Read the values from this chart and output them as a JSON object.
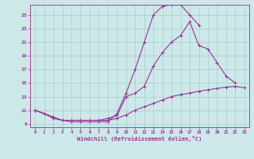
{
  "xlabel": "Windchill (Refroidissement éolien,°C)",
  "bg_color": "#cce8e8",
  "grid_color": "#aacccc",
  "line_color": "#993399",
  "xlim": [
    -0.5,
    23.5
  ],
  "ylim": [
    8.5,
    26.5
  ],
  "yticks": [
    9,
    11,
    13,
    15,
    17,
    19,
    21,
    23,
    25
  ],
  "xticks": [
    0,
    1,
    2,
    3,
    4,
    5,
    6,
    7,
    8,
    9,
    10,
    11,
    12,
    13,
    14,
    15,
    16,
    17,
    18,
    19,
    20,
    21,
    22,
    23
  ],
  "line1_x": [
    0,
    1,
    2,
    3,
    4,
    5,
    6,
    7,
    8,
    9,
    10,
    11,
    12,
    13,
    14,
    15,
    16,
    17,
    18
  ],
  "line1_y": [
    11.0,
    10.5,
    10.0,
    9.5,
    9.3,
    9.3,
    9.3,
    9.3,
    9.3,
    10.5,
    13.5,
    17.0,
    21.0,
    25.0,
    26.3,
    26.5,
    26.5,
    25.0,
    23.5
  ],
  "line2_x": [
    0,
    1,
    2,
    3,
    4,
    5,
    6,
    7,
    8,
    9,
    10,
    11,
    12,
    13,
    14,
    15,
    16,
    17,
    18,
    19,
    20,
    21,
    22
  ],
  "line2_y": [
    11.0,
    10.5,
    10.0,
    9.5,
    9.5,
    9.5,
    9.5,
    9.5,
    9.8,
    10.2,
    13.0,
    13.5,
    14.5,
    17.5,
    19.5,
    21.0,
    22.0,
    24.0,
    20.5,
    20.0,
    18.0,
    16.0,
    15.0
  ],
  "line3_x": [
    0,
    1,
    2,
    3,
    4,
    5,
    6,
    7,
    8,
    9,
    10,
    11,
    12,
    13,
    14,
    15,
    16,
    17,
    18,
    19,
    20,
    21,
    22,
    23
  ],
  "line3_y": [
    11.0,
    10.5,
    9.8,
    9.5,
    9.5,
    9.5,
    9.5,
    9.5,
    9.5,
    9.8,
    10.3,
    11.0,
    11.5,
    12.0,
    12.5,
    13.0,
    13.3,
    13.5,
    13.8,
    14.0,
    14.2,
    14.4,
    14.5,
    14.3
  ]
}
